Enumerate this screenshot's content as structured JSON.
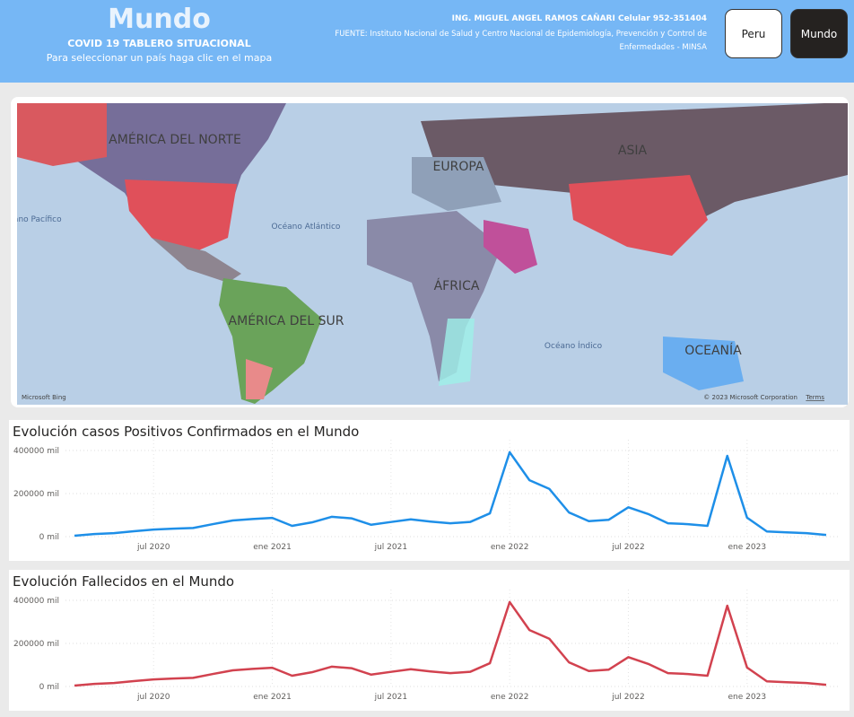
{
  "header": {
    "title": "Mundo",
    "subtitle": "COVID 19 TABLERO SITUACIONAL",
    "hint": "Para seleccionar un país haga clic en el mapa",
    "author": "ING. MIGUEL ANGEL RAMOS CAÑARI Celular 952-351404",
    "source": "FUENTE: Instituto Nacional de Salud y Centro Nacional de Epidemiología, Prevención y Control de Enfermedades - MINSA"
  },
  "buttons": [
    "Peru",
    "Mundo"
  ],
  "map": {
    "labels": [
      "AMÉRICA DEL NORTE",
      "Océano Pacífico",
      "Océano Atlántico",
      "EUROPA",
      "ASIA",
      "ÁFRICA",
      "AMÉRICA DEL SUR",
      "Océano Índico",
      "OCEANÍA"
    ],
    "brand": "Microsoft Bing",
    "copyright": "© 2023 Microsoft Corporation",
    "terms": "Terms"
  },
  "chart_data": [
    {
      "type": "line",
      "title": "Evolución casos Positivos Confirmados en el Mundo",
      "categories": [
        null,
        null,
        null,
        null,
        "jul 2020",
        null,
        null,
        null,
        null,
        null,
        "ene 2021",
        null,
        null,
        null,
        null,
        null,
        "jul 2021",
        null,
        null,
        null,
        null,
        null,
        "ene 2022",
        null,
        null,
        null,
        null,
        null,
        "jul 2022",
        null,
        null,
        null,
        null,
        null,
        "ene 2023",
        null,
        null,
        null,
        null
      ],
      "values": [
        4000,
        12000,
        16000,
        25000,
        33000,
        37000,
        40000,
        58000,
        75000,
        82000,
        87000,
        50000,
        66000,
        92000,
        85000,
        55000,
        68000,
        80000,
        70000,
        62000,
        68000,
        108000,
        392000,
        262000,
        222000,
        112000,
        72000,
        78000,
        136000,
        105000,
        62000,
        58000,
        50000,
        375000,
        88000,
        24000,
        20000,
        16000,
        8000
      ],
      "color": "#1e8fe8",
      "ylim": [
        0,
        450000
      ],
      "yticks": [
        {
          "value": 0,
          "label": "0 mil"
        },
        {
          "value": 200000,
          "label": "200000 mil"
        },
        {
          "value": 400000,
          "label": "400000 mil"
        }
      ],
      "grid": true
    },
    {
      "type": "line",
      "title": "Evolución Fallecidos en el Mundo",
      "categories": [
        null,
        null,
        null,
        null,
        "jul 2020",
        null,
        null,
        null,
        null,
        null,
        "ene 2021",
        null,
        null,
        null,
        null,
        null,
        "jul 2021",
        null,
        null,
        null,
        null,
        null,
        "ene 2022",
        null,
        null,
        null,
        null,
        null,
        "jul 2022",
        null,
        null,
        null,
        null,
        null,
        "ene 2023",
        null,
        null,
        null,
        null
      ],
      "values": [
        4000,
        12000,
        16000,
        25000,
        33000,
        37000,
        40000,
        58000,
        75000,
        82000,
        87000,
        50000,
        66000,
        92000,
        85000,
        55000,
        68000,
        80000,
        70000,
        62000,
        68000,
        108000,
        392000,
        262000,
        222000,
        112000,
        72000,
        78000,
        136000,
        105000,
        62000,
        58000,
        50000,
        375000,
        88000,
        24000,
        20000,
        16000,
        8000
      ],
      "color": "#d2424f",
      "ylim": [
        0,
        450000
      ],
      "yticks": [
        {
          "value": 0,
          "label": "0 mil"
        },
        {
          "value": 200000,
          "label": "200000 mil"
        },
        {
          "value": 400000,
          "label": "400000 mil"
        }
      ],
      "grid": true
    }
  ]
}
